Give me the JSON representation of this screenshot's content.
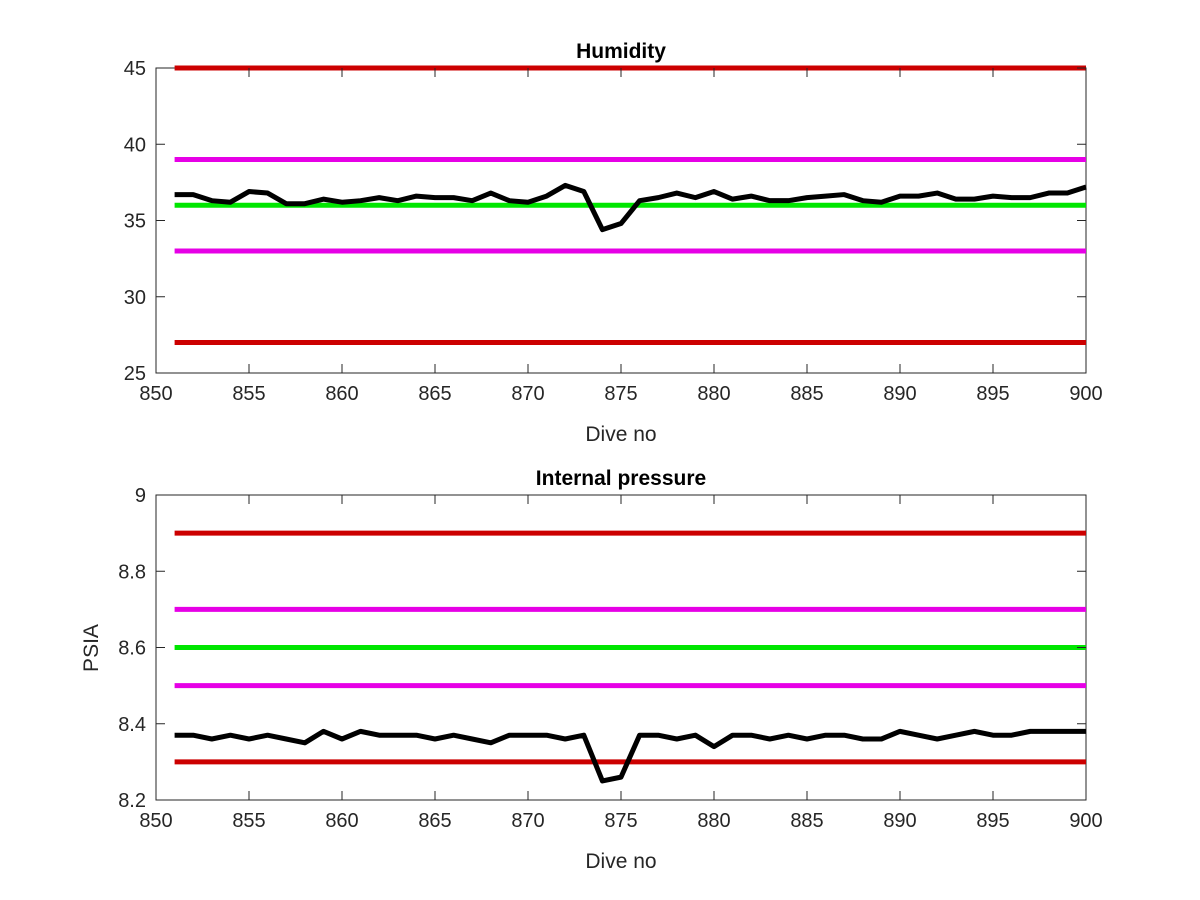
{
  "chart_data": [
    {
      "type": "line",
      "title": "Humidity",
      "xlabel": "Dive no",
      "ylabel": "",
      "xlim": [
        850,
        900
      ],
      "ylim": [
        25,
        45
      ],
      "xticks": [
        850,
        855,
        860,
        865,
        870,
        875,
        880,
        885,
        890,
        895,
        900
      ],
      "yticks": [
        25,
        30,
        35,
        40,
        45
      ],
      "grid": false,
      "series": [
        {
          "color": "#000000",
          "x": [
            851,
            852,
            853,
            854,
            855,
            856,
            857,
            858,
            859,
            860,
            861,
            862,
            863,
            864,
            865,
            866,
            867,
            868,
            869,
            870,
            871,
            872,
            873,
            874,
            875,
            876,
            877,
            878,
            879,
            880,
            881,
            882,
            883,
            884,
            885,
            886,
            887,
            888,
            889,
            890,
            891,
            892,
            893,
            894,
            895,
            896,
            897,
            898,
            899,
            900
          ],
          "y": [
            36.7,
            36.7,
            36.3,
            36.2,
            36.9,
            36.8,
            36.1,
            36.1,
            36.4,
            36.2,
            36.3,
            36.5,
            36.3,
            36.6,
            36.5,
            36.5,
            36.3,
            36.8,
            36.3,
            36.2,
            36.6,
            37.3,
            36.9,
            34.4,
            34.8,
            36.3,
            36.5,
            36.8,
            36.5,
            36.9,
            36.4,
            36.6,
            36.3,
            36.3,
            36.5,
            36.6,
            36.7,
            36.3,
            36.2,
            36.6,
            36.6,
            36.8,
            36.4,
            36.4,
            36.6,
            36.5,
            36.5,
            36.8,
            36.8,
            37.2
          ]
        }
      ],
      "reference_lines": [
        {
          "y": 45,
          "color": "#cc0000"
        },
        {
          "y": 39,
          "color": "#e600e6"
        },
        {
          "y": 36,
          "color": "#00e600"
        },
        {
          "y": 33,
          "color": "#e600e6"
        },
        {
          "y": 27,
          "color": "#cc0000"
        }
      ]
    },
    {
      "type": "line",
      "title": "Internal pressure",
      "xlabel": "Dive no",
      "ylabel": "PSIA",
      "xlim": [
        850,
        900
      ],
      "ylim": [
        8.2,
        9
      ],
      "xticks": [
        850,
        855,
        860,
        865,
        870,
        875,
        880,
        885,
        890,
        895,
        900
      ],
      "yticks": [
        8.2,
        8.4,
        8.6,
        8.8,
        9
      ],
      "grid": false,
      "series": [
        {
          "color": "#000000",
          "x": [
            851,
            852,
            853,
            854,
            855,
            856,
            857,
            858,
            859,
            860,
            861,
            862,
            863,
            864,
            865,
            866,
            867,
            868,
            869,
            870,
            871,
            872,
            873,
            874,
            875,
            876,
            877,
            878,
            879,
            880,
            881,
            882,
            883,
            884,
            885,
            886,
            887,
            888,
            889,
            890,
            891,
            892,
            893,
            894,
            895,
            896,
            897,
            898,
            899,
            900
          ],
          "y": [
            8.37,
            8.37,
            8.36,
            8.37,
            8.36,
            8.37,
            8.36,
            8.35,
            8.38,
            8.36,
            8.38,
            8.37,
            8.37,
            8.37,
            8.36,
            8.37,
            8.36,
            8.35,
            8.37,
            8.37,
            8.37,
            8.36,
            8.37,
            8.25,
            8.26,
            8.37,
            8.37,
            8.36,
            8.37,
            8.34,
            8.37,
            8.37,
            8.36,
            8.37,
            8.36,
            8.37,
            8.37,
            8.36,
            8.36,
            8.38,
            8.37,
            8.36,
            8.37,
            8.38,
            8.37,
            8.37,
            8.38,
            8.38,
            8.38,
            8.38
          ]
        }
      ],
      "reference_lines": [
        {
          "y": 8.9,
          "color": "#cc0000"
        },
        {
          "y": 8.7,
          "color": "#e600e6"
        },
        {
          "y": 8.6,
          "color": "#00e600"
        },
        {
          "y": 8.5,
          "color": "#e600e6"
        },
        {
          "y": 8.3,
          "color": "#cc0000"
        }
      ]
    }
  ]
}
